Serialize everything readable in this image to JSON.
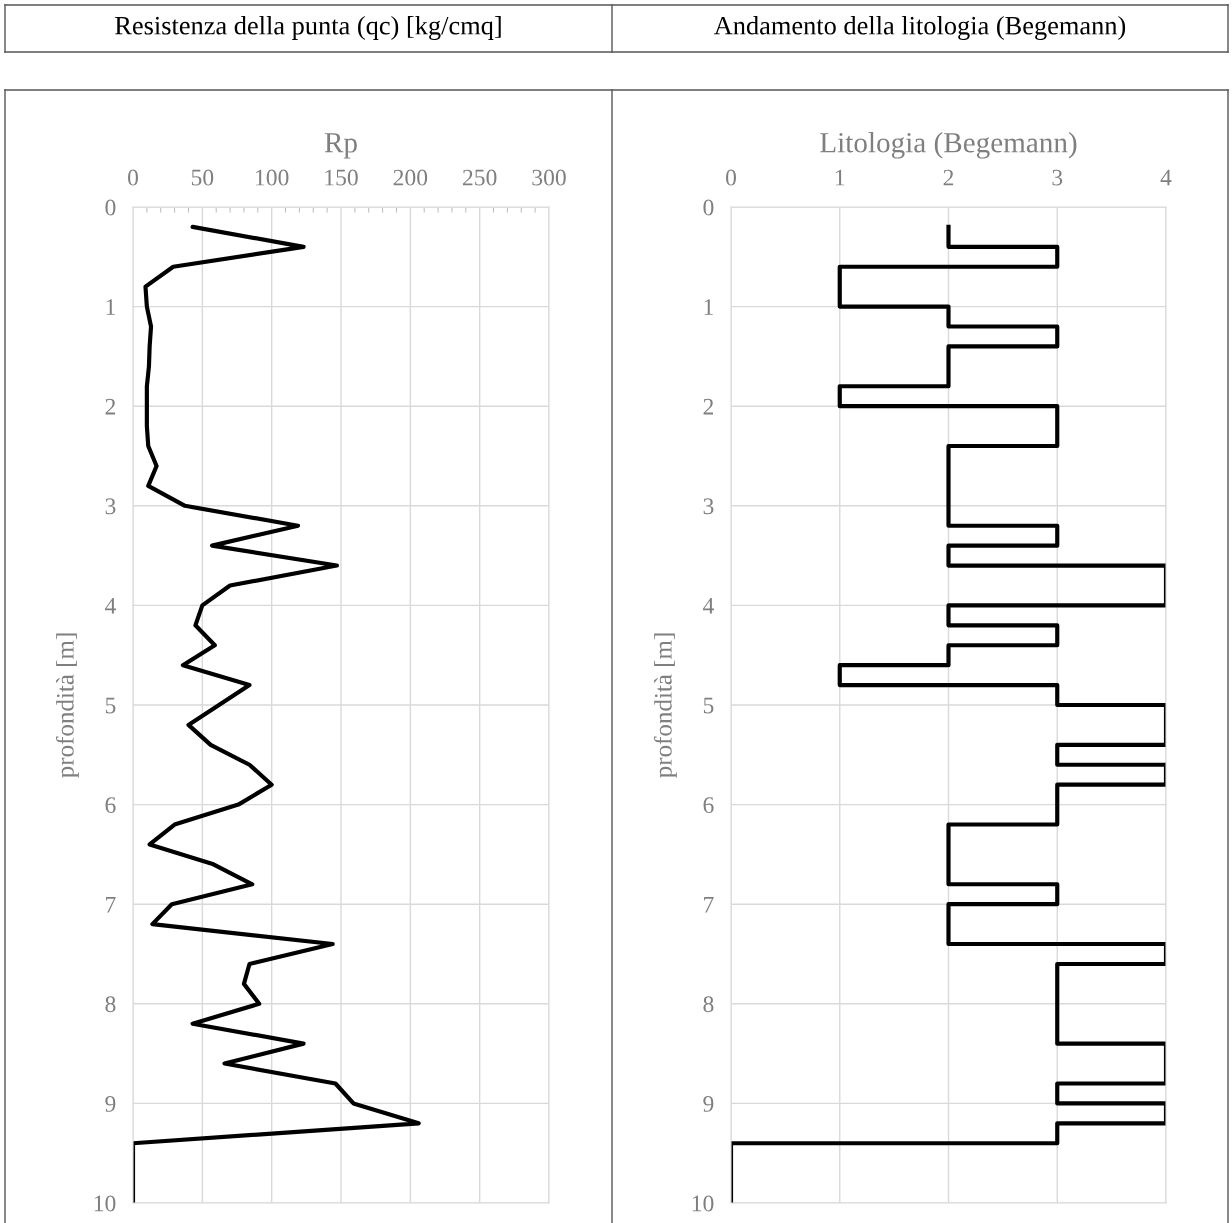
{
  "chart_data": [
    {
      "type": "line",
      "title": "Resistenza della punta (qc) [kg/cmq]",
      "xlabel": "Rp",
      "ylabel": "profondità [m]",
      "series": [
        {
          "color": "#000000",
          "x": [
            43,
            123,
            29,
            9,
            10,
            13,
            12,
            11.5,
            10,
            10,
            10,
            11,
            17,
            11,
            37.5,
            119,
            57,
            147,
            70,
            50,
            45,
            59,
            36,
            84,
            40,
            56,
            84,
            100,
            76,
            30,
            12,
            58,
            86,
            28,
            14,
            144,
            84,
            80,
            91,
            43,
            123,
            66,
            146,
            159,
            206,
            0,
            0
          ],
          "values": [
            0.2,
            0.4,
            0.6,
            0.8,
            1.0,
            1.2,
            1.4,
            1.6,
            1.8,
            2.0,
            2.2,
            2.4,
            2.6,
            2.8,
            3.0,
            3.2,
            3.4,
            3.6,
            3.8,
            4.0,
            4.2,
            4.4,
            4.6,
            4.8,
            5.2,
            5.4,
            5.6,
            5.8,
            6.0,
            6.2,
            6.4,
            6.6,
            6.8,
            7.0,
            7.2,
            7.4,
            7.6,
            7.8,
            8.0,
            8.2,
            8.4,
            8.6,
            8.8,
            9.0,
            9.2,
            9.4,
            10
          ]
        }
      ],
      "xlim": [
        0,
        300
      ],
      "xticks": [
        0,
        {
          "value": 10,
          "label": null
        },
        {
          "value": 20,
          "label": null
        },
        {
          "value": 30,
          "label": null
        },
        {
          "value": 40,
          "label": null
        },
        50,
        {
          "value": 60,
          "label": null
        },
        {
          "value": 70,
          "label": null
        },
        {
          "value": 80,
          "label": null
        },
        {
          "value": 90,
          "label": null
        },
        100,
        {
          "value": 110,
          "label": null
        },
        {
          "value": 120,
          "label": null
        },
        {
          "value": 130,
          "label": null
        },
        {
          "value": 140,
          "label": null
        },
        150,
        {
          "value": 160,
          "label": null
        },
        {
          "value": 170,
          "label": null
        },
        {
          "value": 180,
          "label": null
        },
        {
          "value": 190,
          "label": null
        },
        200,
        {
          "value": 210,
          "label": null
        },
        {
          "value": 220,
          "label": null
        },
        {
          "value": 230,
          "label": null
        },
        {
          "value": 240,
          "label": null
        },
        250,
        {
          "value": 260,
          "label": null
        },
        {
          "value": 270,
          "label": null
        },
        {
          "value": 280,
          "label": null
        },
        {
          "value": 290,
          "label": null
        },
        300
      ],
      "ylim": [
        10,
        0
      ],
      "yticks": [
        0,
        1,
        2,
        3,
        4,
        5,
        6,
        7,
        8,
        9,
        10
      ],
      "grid": true,
      "legend": false,
      "marker": "none",
      "line_style": "solid"
    },
    {
      "type": "step",
      "title": "Andamento della litologia (Begemann)",
      "xlabel": "Litologia (Begemann)",
      "ylabel": "profondità [m]",
      "series": [
        {
          "color": "#000000",
          "x": [
            2,
            3,
            1,
            1,
            2,
            3,
            2,
            2,
            1,
            3,
            3,
            2,
            2,
            2,
            2,
            3,
            2,
            4,
            4,
            2,
            3,
            2,
            1,
            3,
            4,
            4,
            3,
            4,
            3,
            3,
            2,
            2,
            2,
            3,
            2,
            2,
            4,
            3,
            3,
            3,
            3,
            4,
            4,
            3,
            4,
            3,
            0,
            0
          ],
          "values": [
            0.2,
            0.4,
            0.6,
            0.8,
            1.0,
            1.2,
            1.4,
            1.6,
            1.8,
            2.0,
            2.2,
            2.4,
            2.6,
            2.8,
            3.0,
            3.2,
            3.4,
            3.6,
            3.8,
            4.0,
            4.2,
            4.4,
            4.6,
            4.8,
            5.0,
            5.2,
            5.4,
            5.6,
            5.8,
            6.0,
            6.2,
            6.4,
            6.6,
            6.8,
            7.0,
            7.2,
            7.4,
            7.6,
            7.8,
            8.0,
            8.2,
            8.4,
            8.6,
            8.8,
            9.0,
            9.2,
            9.4,
            10
          ]
        }
      ],
      "xlim": [
        0,
        4
      ],
      "xticks": [
        0,
        1,
        2,
        3,
        4
      ],
      "ylim": [
        10,
        0
      ],
      "yticks": [
        0,
        1,
        2,
        3,
        4,
        5,
        6,
        7,
        8,
        9,
        10
      ],
      "grid": true,
      "legend": false,
      "marker": "none",
      "line_style": "solid"
    }
  ]
}
